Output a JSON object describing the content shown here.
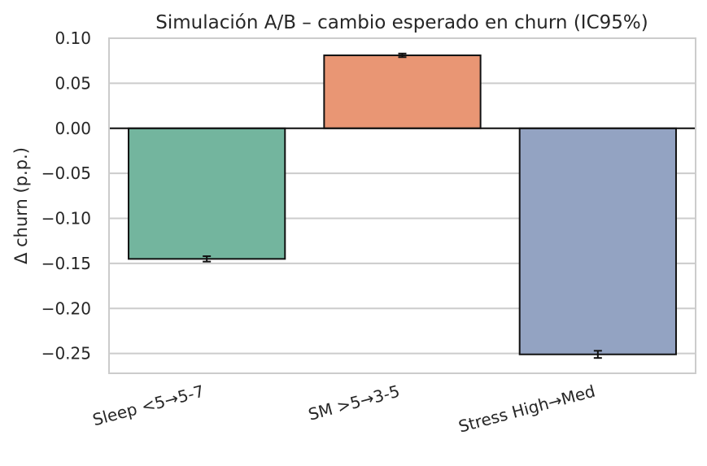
{
  "chart_data": {
    "type": "bar",
    "title": "Simulación A/B – cambio esperado en churn (IC95%)",
    "xlabel": "",
    "ylabel": "Δ churn (p.p.)",
    "categories": [
      "Sleep <5→5-7",
      "SM >5→3-5",
      "Stress High→Med"
    ],
    "values": [
      -0.145,
      0.081,
      -0.251
    ],
    "ci_low": [
      -0.148,
      0.079,
      -0.255
    ],
    "ci_high": [
      -0.142,
      0.083,
      -0.247
    ],
    "colors": [
      "#73B59E",
      "#E99674",
      "#93A3C2"
    ],
    "ylim": [
      -0.272,
      0.1
    ],
    "yticks": [
      0.1,
      0.05,
      0.0,
      -0.05,
      -0.1,
      -0.15,
      -0.2,
      -0.25
    ],
    "ytick_labels": [
      "0.10",
      "0.05",
      "0.00",
      "−0.05",
      "−0.10",
      "−0.15",
      "−0.20",
      "−0.25"
    ],
    "grid": "horizontal"
  }
}
